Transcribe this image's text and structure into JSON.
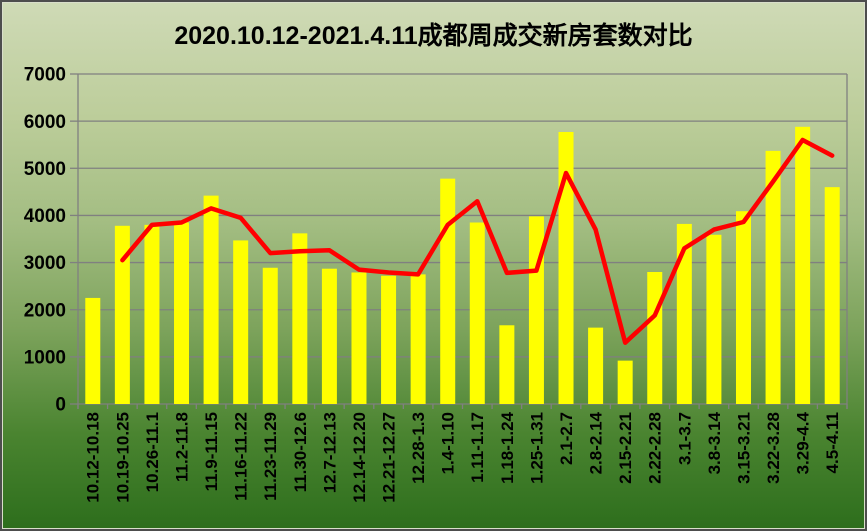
{
  "chart_data": {
    "type": "bar",
    "title": "2020.10.12-2021.4.11成都周成交新房套数对比",
    "xlabel": "",
    "ylabel": "",
    "legend": "none",
    "grid": "horizontal",
    "ylim": [
      0,
      7000
    ],
    "ytick_step": 1000,
    "categories": [
      "10.12-10.18",
      "10.19-10.25",
      "10.26-11.1",
      "11.2-11.8",
      "11.9-11.15",
      "11.16-11.22",
      "11.23-11.29",
      "11.30-12.6",
      "12.7-12.13",
      "12.14-12.20",
      "12.21-12.27",
      "12.28-1.3",
      "1.4-1.10",
      "1.11-1.17",
      "1.18-1.24",
      "1.25-1.31",
      "2.1-2.7",
      "2.8-2.14",
      "2.15-2.21",
      "2.22-2.28",
      "3.1-3.7",
      "3.8-3.14",
      "3.15-3.21",
      "3.22-3.28",
      "3.29-4.4",
      "4.5-4.11"
    ],
    "series": [
      {
        "type": "bar",
        "color": "#ffff00",
        "values": [
          2250,
          3780,
          3800,
          3850,
          4420,
          3470,
          2890,
          3620,
          2870,
          2790,
          2720,
          2750,
          4780,
          3850,
          1670,
          3980,
          5770,
          1620,
          920,
          2800,
          3820,
          3590,
          4090,
          5370,
          5880,
          4600
        ]
      },
      {
        "type": "line",
        "color": "#ff0000",
        "values": [
          null,
          3050,
          3800,
          3850,
          4150,
          3950,
          3200,
          3240,
          3260,
          2850,
          2790,
          2750,
          3800,
          4300,
          2780,
          2830,
          4900,
          3700,
          1300,
          1880,
          3300,
          3700,
          3860,
          4720,
          5600,
          5270
        ]
      }
    ],
    "axis_color": "#808080",
    "label_color": "#000000"
  }
}
